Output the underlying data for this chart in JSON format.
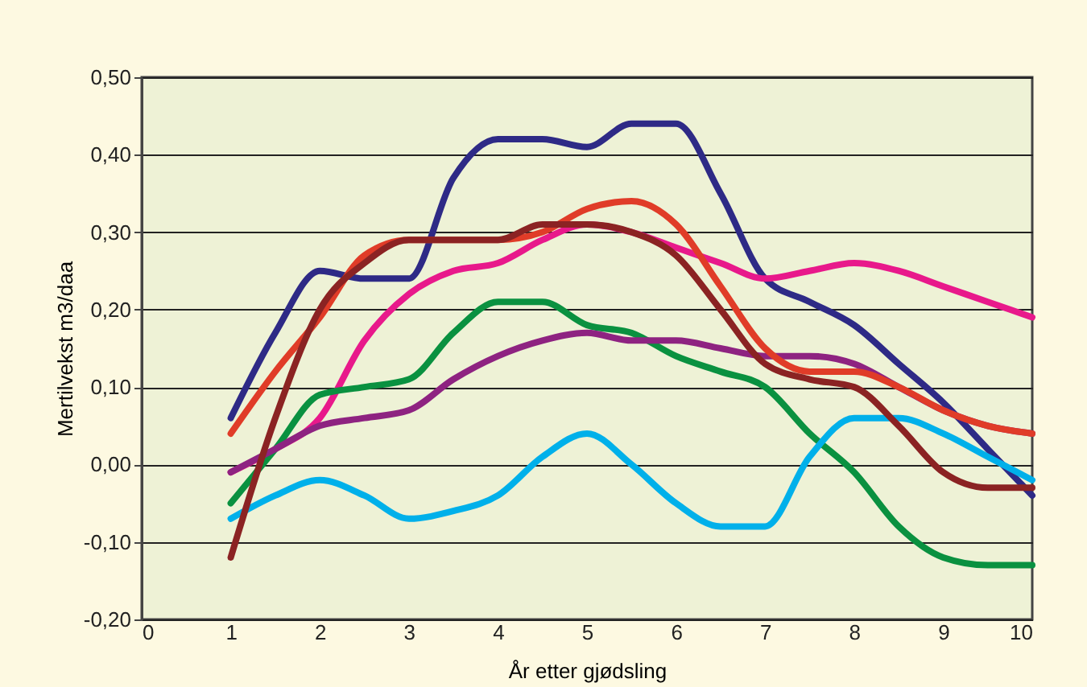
{
  "chart_data": {
    "type": "line",
    "xlabel": "År etter gjødsling",
    "ylabel": "Mertilvekst m3/daa",
    "x": [
      1,
      1.5,
      2,
      2.5,
      3,
      3.5,
      4,
      4.5,
      5,
      5.5,
      6,
      6.5,
      7,
      7.5,
      8,
      8.5,
      9,
      9.5,
      10
    ],
    "series": [
      {
        "color": "#2e2a86",
        "values": [
          0.06,
          0.17,
          0.25,
          0.24,
          0.24,
          0.37,
          0.42,
          0.42,
          0.41,
          0.44,
          0.44,
          0.35,
          0.24,
          0.21,
          0.18,
          0.13,
          0.08,
          0.02,
          -0.04
        ]
      },
      {
        "color": "#e8198b",
        "values": [
          -0.01,
          0.02,
          0.06,
          0.16,
          0.22,
          0.25,
          0.26,
          0.29,
          0.31,
          0.3,
          0.28,
          0.26,
          0.24,
          0.25,
          0.26,
          0.25,
          0.23,
          0.21,
          0.19
        ]
      },
      {
        "color": "#0a9140",
        "values": [
          -0.05,
          0.02,
          0.09,
          0.1,
          0.11,
          0.17,
          0.21,
          0.21,
          0.18,
          0.17,
          0.14,
          0.12,
          0.1,
          0.04,
          -0.01,
          -0.08,
          -0.12,
          -0.13,
          -0.13
        ]
      },
      {
        "color": "#8e2381",
        "values": [
          -0.01,
          0.02,
          0.05,
          0.06,
          0.07,
          0.11,
          0.14,
          0.16,
          0.17,
          0.16,
          0.16,
          0.15,
          0.14,
          0.14,
          0.13,
          0.1,
          0.07,
          0.05,
          0.04
        ]
      },
      {
        "color": "#00b0ea",
        "values": [
          -0.07,
          -0.04,
          -0.02,
          -0.04,
          -0.07,
          -0.06,
          -0.04,
          0.01,
          0.04,
          0.0,
          -0.05,
          -0.08,
          -0.08,
          0.01,
          0.06,
          0.06,
          0.04,
          0.01,
          -0.02
        ]
      },
      {
        "color": "#e03c28",
        "values": [
          0.04,
          0.12,
          0.19,
          0.27,
          0.29,
          0.29,
          0.29,
          0.3,
          0.33,
          0.34,
          0.31,
          0.23,
          0.15,
          0.12,
          0.12,
          0.1,
          0.07,
          0.05,
          0.04
        ]
      },
      {
        "color": "#8b2323",
        "values": [
          -0.12,
          0.06,
          0.2,
          0.26,
          0.29,
          0.29,
          0.29,
          0.31,
          0.31,
          0.3,
          0.27,
          0.2,
          0.13,
          0.11,
          0.1,
          0.05,
          -0.01,
          -0.03,
          -0.03
        ]
      }
    ],
    "xlim": [
      0,
      10
    ],
    "xticks": [
      0,
      1,
      2,
      3,
      4,
      5,
      6,
      7,
      8,
      9,
      10
    ],
    "ylim": [
      -0.2,
      0.5
    ],
    "yticks": [
      {
        "value": -0.2,
        "label": "-0,20"
      },
      {
        "value": -0.1,
        "label": "-0,10"
      },
      {
        "value": 0,
        "label": "0,00"
      },
      {
        "value": 0.1,
        "label": "0,10"
      },
      {
        "value": 0.2,
        "label": "0,20"
      },
      {
        "value": 0.3,
        "label": "0,30"
      },
      {
        "value": 0.4,
        "label": "0,40"
      },
      {
        "value": 0.5,
        "label": "0,50"
      }
    ],
    "grid": "y",
    "legend": false,
    "marker": "none",
    "line_style": "solid"
  }
}
